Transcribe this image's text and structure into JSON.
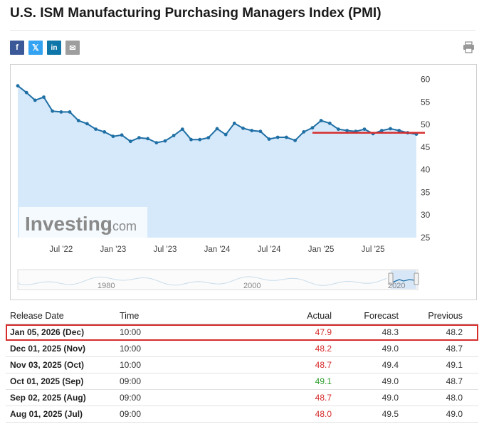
{
  "header": {
    "title": "U.S. ISM Manufacturing Purchasing Managers Index (PMI)"
  },
  "share_buttons": [
    {
      "name": "facebook",
      "glyph": "f"
    },
    {
      "name": "x",
      "glyph": "𝕏"
    },
    {
      "name": "linkedin",
      "glyph": "in"
    },
    {
      "name": "email",
      "glyph": "✉"
    }
  ],
  "chart": {
    "watermark_brand": "Investing",
    "watermark_suffix": ".com"
  },
  "chart_data": {
    "type": "area",
    "x_tick_labels": [
      "Jul '22",
      "Jan '23",
      "Jul '23",
      "Jan '24",
      "Jul '24",
      "Jan '25",
      "Jul '25"
    ],
    "y_ticks": [
      25,
      30,
      35,
      40,
      45,
      50,
      55,
      60
    ],
    "ylim": [
      25,
      62
    ],
    "grid": false,
    "series": [
      {
        "months": [
          "2022-02",
          "2022-03",
          "2022-04",
          "2022-05",
          "2022-06",
          "2022-07",
          "2022-08",
          "2022-09",
          "2022-10",
          "2022-11",
          "2022-12",
          "2023-01",
          "2023-02",
          "2023-03",
          "2023-04",
          "2023-05",
          "2023-06",
          "2023-07",
          "2023-08",
          "2023-09",
          "2023-10",
          "2023-11",
          "2023-12",
          "2024-01",
          "2024-02",
          "2024-03",
          "2024-04",
          "2024-05",
          "2024-06",
          "2024-07",
          "2024-08",
          "2024-09",
          "2024-10",
          "2024-11",
          "2024-12",
          "2025-01",
          "2025-02",
          "2025-03",
          "2025-04",
          "2025-05",
          "2025-06",
          "2025-07",
          "2025-08",
          "2025-09",
          "2025-10",
          "2025-11",
          "2025-12"
        ],
        "values": [
          58.6,
          57.1,
          55.4,
          56.1,
          53.0,
          52.8,
          52.8,
          50.9,
          50.2,
          49.0,
          48.4,
          47.4,
          47.7,
          46.3,
          47.1,
          46.9,
          46.0,
          46.4,
          47.6,
          49.0,
          46.7,
          46.7,
          47.1,
          49.1,
          47.8,
          50.3,
          49.2,
          48.7,
          48.5,
          46.8,
          47.2,
          47.2,
          46.5,
          48.4,
          49.3,
          50.9,
          50.3,
          49.0,
          48.7,
          48.5,
          49.0,
          48.0,
          48.7,
          49.1,
          48.7,
          48.2,
          47.9
        ]
      }
    ],
    "reference_line": {
      "value": 48.2,
      "from": "2024-12",
      "to": "2025-12",
      "color": "#d62d2d"
    },
    "line_color": "#1f6fa5",
    "fill_color": "#d6e9fb",
    "navigator": {
      "tick_labels": [
        "1980",
        "2000",
        "2020"
      ]
    }
  },
  "table": {
    "headers": {
      "date": "Release Date",
      "time": "Time",
      "actual": "Actual",
      "forecast": "Forecast",
      "previous": "Previous"
    },
    "rows": [
      {
        "date": "Jan 05, 2026 (Dec)",
        "time": "10:00",
        "actual": "47.9",
        "actual_status": "neg",
        "forecast": "48.3",
        "previous": "48.2",
        "highlighted": true
      },
      {
        "date": "Dec 01, 2025 (Nov)",
        "time": "10:00",
        "actual": "48.2",
        "actual_status": "neg",
        "forecast": "49.0",
        "previous": "48.7",
        "highlighted": false
      },
      {
        "date": "Nov 03, 2025 (Oct)",
        "time": "10:00",
        "actual": "48.7",
        "actual_status": "neg",
        "forecast": "49.4",
        "previous": "49.1",
        "highlighted": false
      },
      {
        "date": "Oct 01, 2025 (Sep)",
        "time": "09:00",
        "actual": "49.1",
        "actual_status": "pos",
        "forecast": "49.0",
        "previous": "48.7",
        "highlighted": false
      },
      {
        "date": "Sep 02, 2025 (Aug)",
        "time": "09:00",
        "actual": "48.7",
        "actual_status": "neg",
        "forecast": "49.0",
        "previous": "48.0",
        "highlighted": false
      },
      {
        "date": "Aug 01, 2025 (Jul)",
        "time": "09:00",
        "actual": "48.0",
        "actual_status": "neg",
        "forecast": "49.5",
        "previous": "49.0",
        "highlighted": false
      }
    ]
  }
}
